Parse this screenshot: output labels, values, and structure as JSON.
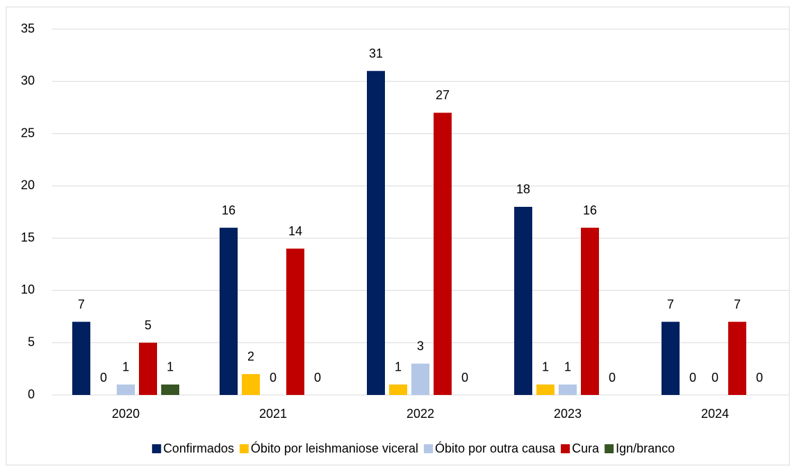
{
  "chart_data": {
    "type": "bar",
    "categories": [
      "2020",
      "2021",
      "2022",
      "2023",
      "2024"
    ],
    "series": [
      {
        "name": "Confirmados",
        "color": "#002060",
        "values": [
          7,
          16,
          31,
          18,
          7
        ]
      },
      {
        "name": "Óbito por leishmaniose viceral",
        "color": "#ffc000",
        "values": [
          0,
          2,
          1,
          1,
          0
        ]
      },
      {
        "name": "Óbito por outra causa",
        "color": "#b4c7e7",
        "values": [
          1,
          0,
          3,
          1,
          0
        ]
      },
      {
        "name": "Cura",
        "color": "#c00000",
        "values": [
          5,
          14,
          27,
          16,
          7
        ]
      },
      {
        "name": "Ign/branco",
        "color": "#375623",
        "values": [
          1,
          0,
          0,
          0,
          0
        ]
      }
    ],
    "ylim": [
      0,
      35
    ],
    "yticks": [
      0,
      5,
      10,
      15,
      20,
      25,
      30,
      35
    ],
    "grid": true,
    "legend": "bottom"
  }
}
